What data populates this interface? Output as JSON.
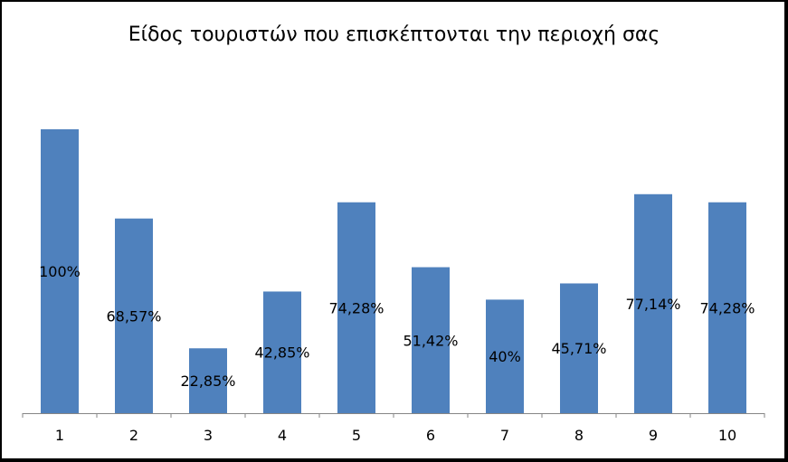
{
  "chart_data": {
    "type": "bar",
    "title": "Είδος τουριστών που επισκέπτονται την περιοχή σας",
    "xlabel": "",
    "ylabel": "",
    "categories": [
      "1",
      "2",
      "3",
      "4",
      "5",
      "6",
      "7",
      "8",
      "9",
      "10"
    ],
    "values": [
      100,
      68.57,
      22.85,
      42.85,
      74.28,
      51.42,
      40,
      45.71,
      77.14,
      74.28
    ],
    "data_labels": [
      "100%",
      "68,57%",
      "22,85%",
      "42,85%",
      "74,28%",
      "51,42%",
      "40%",
      "45,71%",
      "77,14%",
      "74,28%"
    ],
    "ylim": [
      0,
      100
    ],
    "bar_color": "#4F81BD",
    "grid": false,
    "legend": "none"
  }
}
